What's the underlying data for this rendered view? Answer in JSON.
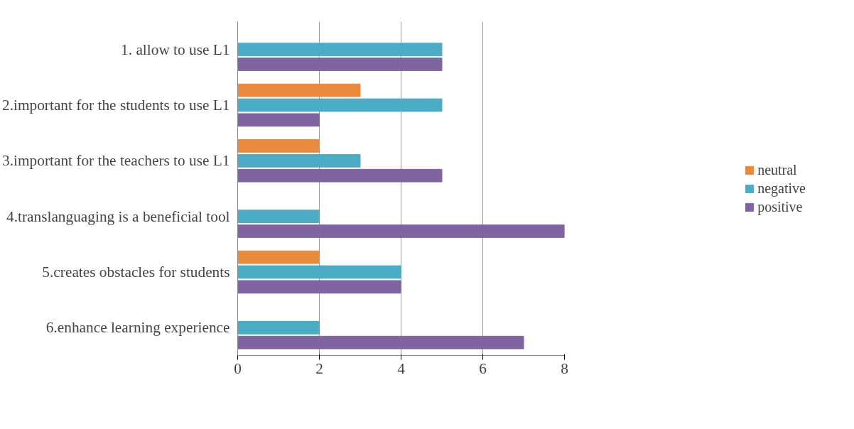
{
  "chart_data": {
    "type": "bar",
    "orientation": "horizontal",
    "categories": [
      "1. allow to use L1",
      "2.important for the students to use L1",
      "3.important for the teachers to use L1",
      "4.translanguaging is a beneficial tool",
      "5.creates obstacles for students",
      "6.enhance learning experience"
    ],
    "series": [
      {
        "name": "neutral",
        "color": "#e98a3c",
        "values": [
          null,
          3,
          2,
          null,
          2,
          null
        ]
      },
      {
        "name": "negative",
        "color": "#4bacc6",
        "values": [
          5,
          5,
          3,
          2,
          4,
          2
        ]
      },
      {
        "name": "positive",
        "color": "#8064a2",
        "values": [
          5,
          2,
          5,
          8,
          4,
          7
        ]
      }
    ],
    "xlim": [
      0,
      8
    ],
    "xticks": [
      0,
      2,
      4,
      6,
      8
    ],
    "grid": "x",
    "legend": "right"
  }
}
